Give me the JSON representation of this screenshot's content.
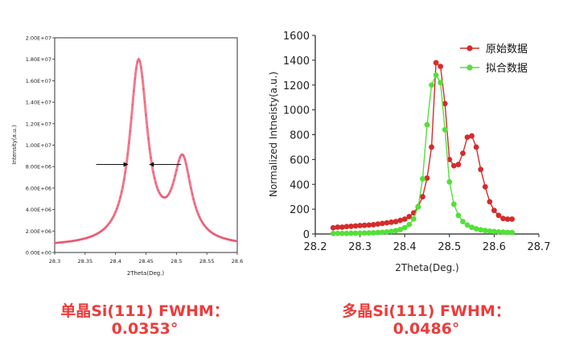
{
  "chart_data": [
    {
      "type": "line",
      "xlabel": "2Theta(Deg.)",
      "ylabel": "Intensity(a.u.)",
      "xlim": [
        28.3,
        28.6
      ],
      "ylim": [
        0,
        20000000
      ],
      "x_ticks": [
        "28.3",
        "28.35",
        "28.4",
        "28.45",
        "28.5",
        "28.55",
        "28.6"
      ],
      "y_ticks": [
        "0.00E+00",
        "2.00E+06",
        "4.00E+06",
        "6.00E+06",
        "8.00E+06",
        "1.00E+07",
        "1.20E+07",
        "1.40E+07",
        "1.60E+07",
        "1.80E+07",
        "2.00E+07"
      ],
      "grid": false,
      "line_color": "#f07a8f",
      "marker_color": "#e8506a",
      "peaks": [
        {
          "center": 28.438,
          "height": 17000000,
          "fwhm": 0.0353
        },
        {
          "center": 28.51,
          "height": 7600000,
          "fwhm": 0.036
        }
      ],
      "baseline": 560000,
      "fwhm_arrows": {
        "y": 8200000,
        "left_x": 28.421,
        "right_x": 28.455
      }
    },
    {
      "type": "line",
      "xlabel": "2Theta(Deg.)",
      "ylabel": "Normalized Intneisty(a.u.)",
      "xlim": [
        28.2,
        28.7
      ],
      "ylim": [
        0,
        1600
      ],
      "x_ticks": [
        "28.2",
        "28.3",
        "28.4",
        "28.5",
        "28.6",
        "28.7"
      ],
      "y_ticks": [
        "0",
        "200",
        "400",
        "600",
        "800",
        "1000",
        "1200",
        "1400",
        "1600"
      ],
      "grid": false,
      "legend_position": "top-right",
      "series": [
        {
          "name": "原始数据",
          "color": "#d62b2b",
          "x": [
            28.24,
            28.25,
            28.26,
            28.27,
            28.28,
            28.29,
            28.3,
            28.31,
            28.32,
            28.33,
            28.34,
            28.35,
            28.36,
            28.37,
            28.38,
            28.39,
            28.4,
            28.41,
            28.42,
            28.43,
            28.44,
            28.45,
            28.46,
            28.47,
            28.48,
            28.49,
            28.5,
            28.51,
            28.52,
            28.53,
            28.54,
            28.55,
            28.56,
            28.57,
            28.58,
            28.59,
            28.6,
            28.61,
            28.62,
            28.63,
            28.64
          ],
          "y": [
            50,
            55,
            55,
            60,
            62,
            65,
            68,
            70,
            72,
            75,
            80,
            85,
            90,
            95,
            100,
            110,
            120,
            140,
            170,
            220,
            300,
            450,
            700,
            1380,
            1350,
            1050,
            600,
            550,
            560,
            650,
            780,
            790,
            700,
            520,
            380,
            260,
            190,
            150,
            125,
            120,
            120
          ]
        },
        {
          "name": "拟合数据",
          "color": "#54e03a",
          "x": [
            28.24,
            28.25,
            28.26,
            28.27,
            28.28,
            28.29,
            28.3,
            28.31,
            28.32,
            28.33,
            28.34,
            28.35,
            28.36,
            28.37,
            28.38,
            28.39,
            28.4,
            28.41,
            28.42,
            28.43,
            28.44,
            28.45,
            28.46,
            28.47,
            28.48,
            28.49,
            28.5,
            28.51,
            28.52,
            28.53,
            28.54,
            28.55,
            28.56,
            28.57,
            28.58,
            28.59,
            28.6,
            28.61,
            28.62,
            28.63,
            28.64
          ],
          "y": [
            4,
            5,
            5,
            5,
            6,
            6,
            7,
            8,
            9,
            10,
            12,
            14,
            17,
            21,
            27,
            36,
            51,
            76,
            122,
            218,
            444,
            880,
            1200,
            1280,
            1220,
            840,
            420,
            240,
            150,
            100,
            72,
            54,
            42,
            34,
            28,
            23,
            20,
            17,
            15,
            13,
            12
          ]
        }
      ]
    }
  ],
  "captions": {
    "left_title": "单晶Si(111) FWHM：",
    "left_value": "0.0353°",
    "right_title": "多晶Si(111) FWHM：",
    "right_value": "0.0486°"
  }
}
